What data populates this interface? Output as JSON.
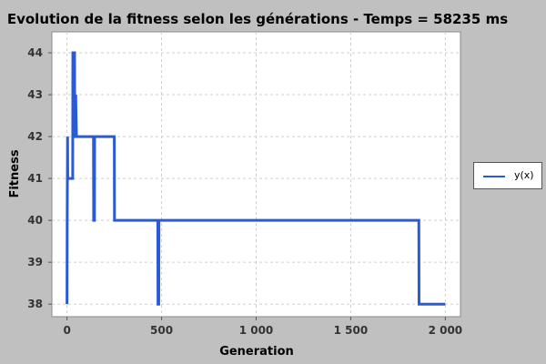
{
  "chart_data": {
    "type": "line",
    "title": "Evolution de la fitness selon les générations - Temps = 58235 ms",
    "xlabel": "Generation",
    "ylabel": "Fitness",
    "xlim": [
      -80,
      2080
    ],
    "ylim": [
      37.7,
      44.5
    ],
    "xticks": [
      0,
      500,
      1000,
      1500,
      2000
    ],
    "xtick_labels": [
      "0",
      "500",
      "1 000",
      "1 500",
      "2 000"
    ],
    "yticks": [
      38,
      39,
      40,
      41,
      42,
      43,
      44
    ],
    "ytick_labels": [
      "38",
      "39",
      "40",
      "41",
      "42",
      "43",
      "44"
    ],
    "grid": true,
    "legend": "right",
    "series": [
      {
        "name": "y(x)",
        "color": "#2a5bd7",
        "x": [
          0,
          1,
          2,
          3,
          4,
          10,
          30,
          31,
          40,
          41,
          45,
          46,
          50,
          140,
          141,
          145,
          146,
          250,
          251,
          480,
          481,
          485,
          486,
          1860,
          1861,
          2000
        ],
        "y": [
          38,
          40,
          41,
          42,
          41,
          41,
          41,
          44,
          44,
          42,
          42,
          43,
          42,
          42,
          40,
          40,
          42,
          42,
          40,
          40,
          38,
          38,
          40,
          40,
          38,
          38
        ]
      }
    ]
  }
}
